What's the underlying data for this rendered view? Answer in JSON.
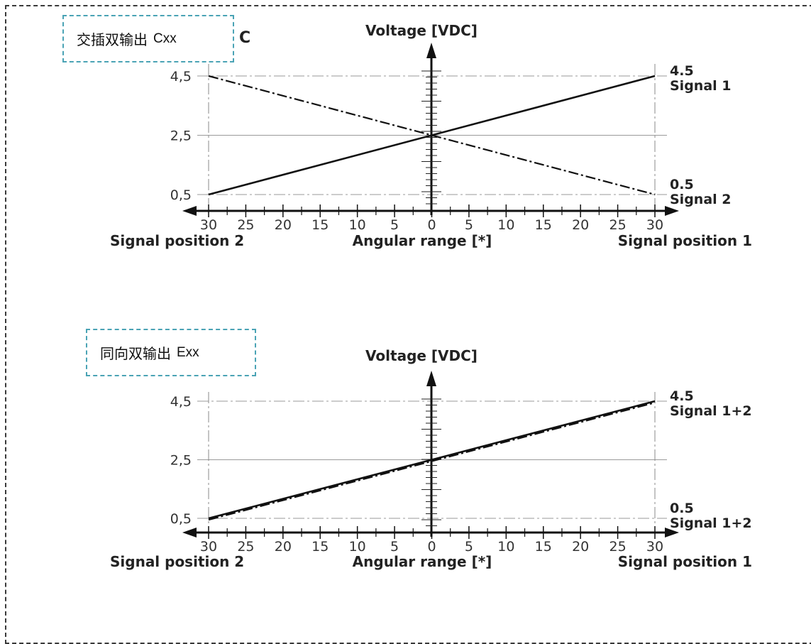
{
  "chart_data": [
    {
      "type": "line",
      "tag": {
        "label": "交插双输出",
        "code": "Cxx"
      },
      "corner_mark": "C",
      "ylabel": "Voltage [VDC]",
      "xlabel": "Angular range [*]",
      "left_label": "Signal position 2",
      "right_label": "Signal position 1",
      "y_ticks": [
        "4,5",
        "2,5",
        "0,5"
      ],
      "y_tick_values": [
        4.5,
        2.5,
        0.5
      ],
      "x_ticks": [
        "30",
        "25",
        "20",
        "15",
        "10",
        "5",
        "0",
        "5",
        "10",
        "15",
        "20",
        "25",
        "30"
      ],
      "x": [
        -30,
        30
      ],
      "ylim": [
        0.5,
        4.5
      ],
      "right_annotations": [
        {
          "value": "4.5",
          "name": "Signal 1",
          "y": 4.5
        },
        {
          "value": "0.5",
          "name": "Signal 2",
          "y": 0.5
        }
      ],
      "series": [
        {
          "key": "s1",
          "x": [
            -30,
            30
          ],
          "values": [
            0.5,
            4.5
          ],
          "style": "solid"
        },
        {
          "key": "s2",
          "x": [
            -30,
            30
          ],
          "values": [
            4.5,
            0.5
          ],
          "style": "dashdot"
        }
      ]
    },
    {
      "type": "line",
      "tag": {
        "label": "同向双输出",
        "code": "Exx"
      },
      "ylabel": "Voltage [VDC]",
      "xlabel": "Angular range [*]",
      "left_label": "Signal position 2",
      "right_label": "Signal position 1",
      "y_ticks": [
        "4,5",
        "2,5",
        "0,5"
      ],
      "y_tick_values": [
        4.5,
        2.5,
        0.5
      ],
      "x_ticks": [
        "30",
        "25",
        "20",
        "15",
        "10",
        "5",
        "0",
        "5",
        "10",
        "15",
        "20",
        "25",
        "30"
      ],
      "x": [
        -30,
        30
      ],
      "ylim": [
        0.5,
        4.5
      ],
      "right_annotations": [
        {
          "value": "4.5",
          "name": "Signal 1+2",
          "y": 4.5
        },
        {
          "value": "0.5",
          "name": "Signal 1+2",
          "y": 0.5
        }
      ],
      "series": [
        {
          "key": "s1",
          "x": [
            -30,
            30
          ],
          "values": [
            0.5,
            4.5
          ],
          "style": "solid"
        },
        {
          "key": "s2",
          "x": [
            -30,
            30
          ],
          "values": [
            0.45,
            4.45
          ],
          "style": "dashdot"
        }
      ]
    }
  ]
}
